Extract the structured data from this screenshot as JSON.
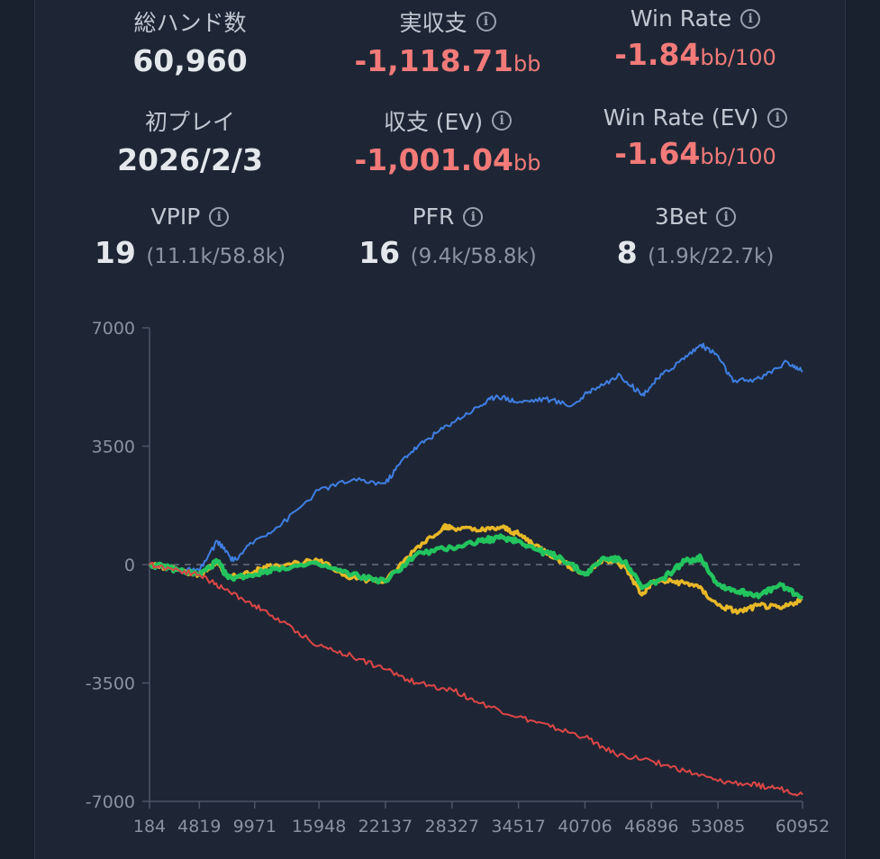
{
  "stats": {
    "total_hands": {
      "label": "総ハンド数",
      "value": "60,960"
    },
    "actual_profit": {
      "label": "実収支",
      "value": "-1,118.71",
      "unit": "bb"
    },
    "win_rate": {
      "label": "Win Rate",
      "value": "-1.84",
      "unit": "bb/100"
    },
    "first_play": {
      "label": "初プレイ",
      "value": "2026/2/3"
    },
    "profit_ev": {
      "label": "収支 (EV)",
      "value": "-1,001.04",
      "unit": "bb"
    },
    "win_rate_ev": {
      "label": "Win Rate (EV)",
      "value": "-1.64",
      "unit": "bb/100"
    },
    "vpip": {
      "label": "VPIP",
      "value": "19",
      "detail": "(11.1k/58.8k)"
    },
    "pfr": {
      "label": "PFR",
      "value": "16",
      "detail": "(9.4k/58.8k)"
    },
    "threebet": {
      "label": "3Bet",
      "value": "8",
      "detail": "(1.9k/22.7k)"
    }
  },
  "colors": {
    "negative": "#f27a78",
    "series_blue": "#3f7fe3",
    "series_yellow": "#e8b827",
    "series_green": "#23c45e",
    "series_red": "#dc4646"
  },
  "chart_data": {
    "type": "line",
    "y_ticks": [
      "7000",
      "3500",
      "0",
      "-3500",
      "-7000"
    ],
    "x_ticks": [
      "184",
      "4819",
      "9971",
      "15948",
      "22137",
      "28327",
      "34517",
      "40706",
      "46896",
      "53085",
      "60952"
    ],
    "xlim": [
      184,
      60952
    ],
    "ylim": [
      -7000,
      7000
    ],
    "zero_line": "dashed",
    "series": [
      {
        "color": "blue",
        "x": [
          184,
          3000,
          4819,
          6500,
          8000,
          9971,
          12500,
          15948,
          19000,
          22137,
          24000,
          26000,
          28327,
          31000,
          32500,
          34517,
          37000,
          39500,
          41500,
          44000,
          46000,
          47500,
          49500,
          51500,
          53000,
          54500,
          57000,
          59500,
          60952
        ],
        "y": [
          0,
          -150,
          -200,
          700,
          100,
          700,
          1200,
          2200,
          2500,
          2400,
          3200,
          3700,
          4200,
          4700,
          5000,
          4800,
          4900,
          4700,
          5200,
          5600,
          5000,
          5500,
          6000,
          6500,
          6200,
          5400,
          5500,
          6000,
          5700
        ]
      },
      {
        "color": "yellow",
        "x": [
          184,
          2000,
          4819,
          6500,
          7500,
          9971,
          12000,
          15948,
          19000,
          22137,
          25000,
          27500,
          28327,
          31000,
          33000,
          34517,
          36500,
          38500,
          40706,
          42500,
          44500,
          46000,
          47000,
          49000,
          51000,
          53085,
          55000,
          57000,
          59000,
          60952
        ],
        "y": [
          0,
          -100,
          -300,
          100,
          -400,
          -200,
          0,
          100,
          -400,
          -500,
          500,
          1100,
          1100,
          1000,
          1100,
          900,
          500,
          100,
          -300,
          200,
          -100,
          -900,
          -500,
          -500,
          -600,
          -1200,
          -1400,
          -1200,
          -1300,
          -1000
        ]
      },
      {
        "color": "green",
        "x": [
          184,
          2000,
          4819,
          6500,
          7500,
          9971,
          12000,
          15948,
          19000,
          22137,
          25000,
          28327,
          31000,
          33000,
          34517,
          36500,
          38500,
          40706,
          42500,
          44500,
          46000,
          48000,
          50000,
          51500,
          53085,
          55000,
          57000,
          59000,
          60952
        ],
        "y": [
          0,
          -100,
          -300,
          100,
          -400,
          -300,
          -100,
          0,
          -300,
          -500,
          300,
          500,
          700,
          800,
          700,
          400,
          200,
          -300,
          200,
          100,
          -700,
          -400,
          100,
          200,
          -600,
          -800,
          -900,
          -600,
          -1000
        ]
      },
      {
        "color": "red",
        "x": [
          184,
          2000,
          4819,
          7000,
          9971,
          12500,
          15948,
          19000,
          22137,
          25000,
          28327,
          31000,
          34517,
          37500,
          40706,
          43500,
          46896,
          50000,
          53085,
          56000,
          58500,
          60952
        ],
        "y": [
          0,
          -100,
          -300,
          -700,
          -1200,
          -1700,
          -2400,
          -2700,
          -3100,
          -3500,
          -3700,
          -4100,
          -4500,
          -4800,
          -5100,
          -5600,
          -5800,
          -6100,
          -6400,
          -6500,
          -6600,
          -6800
        ]
      }
    ]
  }
}
